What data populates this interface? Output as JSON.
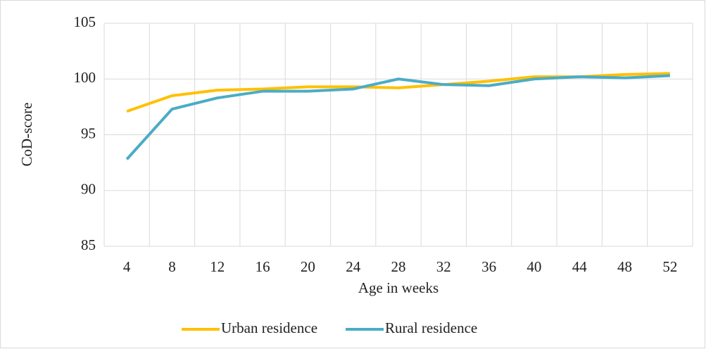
{
  "chart_data": {
    "type": "line",
    "x_label": "Age in weeks",
    "y_label": "CoD-score",
    "categories": [
      4,
      8,
      12,
      16,
      20,
      24,
      28,
      32,
      36,
      40,
      44,
      48,
      52
    ],
    "series": [
      {
        "name": "Urban residence",
        "color": "#ffc000",
        "values": [
          97.1,
          98.5,
          99.0,
          99.1,
          99.3,
          99.3,
          99.2,
          99.5,
          99.8,
          100.2,
          100.2,
          100.4,
          100.5
        ]
      },
      {
        "name": "Rural residence",
        "color": "#4bacc6",
        "values": [
          92.8,
          97.3,
          98.3,
          98.9,
          98.9,
          99.1,
          100.0,
          99.5,
          99.4,
          100.0,
          100.2,
          100.1,
          100.3
        ]
      }
    ],
    "ylim": [
      85,
      105
    ],
    "yticks": [
      85,
      90,
      95,
      100,
      105
    ],
    "grid": true,
    "legend": "bottom"
  }
}
